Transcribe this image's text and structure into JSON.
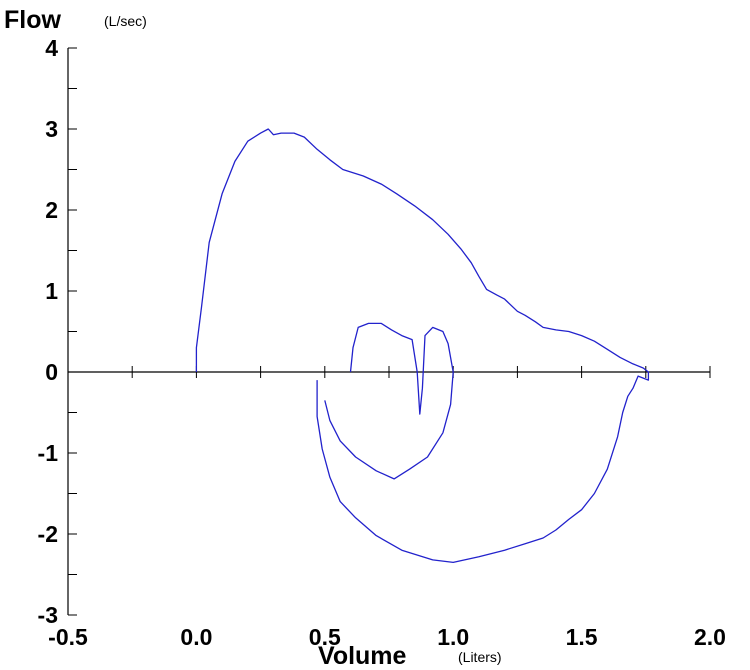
{
  "chart_data": {
    "type": "line",
    "xlabel": "Volume",
    "xunit": "(Liters)",
    "ylabel": "Flow",
    "yunit": "(L/sec)",
    "xlim": [
      -0.5,
      2.0
    ],
    "ylim": [
      -3,
      4
    ],
    "x_ticks": [
      "-0.5",
      "0.0",
      "0.5",
      "1.0",
      "1.5",
      "2.0"
    ],
    "y_ticks": [
      "4",
      "3",
      "2",
      "1",
      "0",
      "-1",
      "-2",
      "-3"
    ],
    "x_tick_values": [
      -0.5,
      0.0,
      0.5,
      1.0,
      1.5,
      2.0
    ],
    "y_tick_values": [
      4,
      3,
      2,
      1,
      0,
      -1,
      -2,
      -3
    ],
    "line_color": "#2222cc",
    "series": [
      {
        "points": [
          [
            0.0,
            0.0
          ],
          [
            0.0,
            0.3
          ],
          [
            0.02,
            0.8
          ],
          [
            0.05,
            1.6
          ],
          [
            0.1,
            2.2
          ],
          [
            0.15,
            2.6
          ],
          [
            0.2,
            2.85
          ],
          [
            0.25,
            2.95
          ],
          [
            0.28,
            3.0
          ],
          [
            0.3,
            2.93
          ],
          [
            0.33,
            2.95
          ],
          [
            0.38,
            2.95
          ],
          [
            0.42,
            2.9
          ],
          [
            0.47,
            2.75
          ],
          [
            0.52,
            2.62
          ],
          [
            0.57,
            2.5
          ],
          [
            0.65,
            2.42
          ],
          [
            0.72,
            2.32
          ],
          [
            0.78,
            2.2
          ],
          [
            0.85,
            2.05
          ],
          [
            0.92,
            1.88
          ],
          [
            0.98,
            1.7
          ],
          [
            1.03,
            1.52
          ],
          [
            1.07,
            1.35
          ],
          [
            1.1,
            1.18
          ],
          [
            1.13,
            1.02
          ],
          [
            1.17,
            0.95
          ],
          [
            1.2,
            0.9
          ],
          [
            1.25,
            0.75
          ],
          [
            1.28,
            0.7
          ],
          [
            1.32,
            0.62
          ],
          [
            1.35,
            0.55
          ],
          [
            1.4,
            0.52
          ],
          [
            1.45,
            0.5
          ],
          [
            1.5,
            0.45
          ],
          [
            1.55,
            0.38
          ],
          [
            1.6,
            0.28
          ],
          [
            1.65,
            0.18
          ],
          [
            1.7,
            0.1
          ],
          [
            1.74,
            0.05
          ],
          [
            1.76,
            0.0
          ],
          [
            1.76,
            -0.1
          ],
          [
            1.72,
            -0.05
          ],
          [
            1.7,
            -0.2
          ],
          [
            1.68,
            -0.3
          ],
          [
            1.66,
            -0.5
          ],
          [
            1.64,
            -0.8
          ],
          [
            1.6,
            -1.2
          ],
          [
            1.55,
            -1.5
          ],
          [
            1.5,
            -1.7
          ],
          [
            1.45,
            -1.82
          ],
          [
            1.4,
            -1.95
          ],
          [
            1.35,
            -2.05
          ],
          [
            1.28,
            -2.12
          ],
          [
            1.2,
            -2.2
          ],
          [
            1.1,
            -2.28
          ],
          [
            1.0,
            -2.35
          ],
          [
            0.92,
            -2.32
          ],
          [
            0.8,
            -2.2
          ],
          [
            0.7,
            -2.02
          ],
          [
            0.62,
            -1.8
          ],
          [
            0.56,
            -1.6
          ],
          [
            0.52,
            -1.3
          ],
          [
            0.49,
            -0.95
          ],
          [
            0.47,
            -0.55
          ],
          [
            0.47,
            -0.1
          ]
        ]
      },
      {
        "points": [
          [
            0.6,
            0.0
          ],
          [
            0.61,
            0.3
          ],
          [
            0.63,
            0.55
          ],
          [
            0.67,
            0.6
          ],
          [
            0.72,
            0.6
          ],
          [
            0.76,
            0.52
          ],
          [
            0.8,
            0.45
          ],
          [
            0.84,
            0.4
          ],
          [
            0.86,
            0.0
          ],
          [
            0.87,
            -0.52
          ],
          [
            0.88,
            -0.2
          ],
          [
            0.89,
            0.45
          ],
          [
            0.92,
            0.55
          ],
          [
            0.96,
            0.5
          ],
          [
            0.98,
            0.35
          ],
          [
            1.0,
            0.0
          ],
          [
            0.99,
            -0.4
          ],
          [
            0.96,
            -0.75
          ],
          [
            0.9,
            -1.05
          ],
          [
            0.83,
            -1.2
          ],
          [
            0.77,
            -1.32
          ],
          [
            0.7,
            -1.22
          ],
          [
            0.62,
            -1.05
          ],
          [
            0.56,
            -0.85
          ],
          [
            0.52,
            -0.6
          ],
          [
            0.5,
            -0.35
          ]
        ]
      }
    ]
  }
}
